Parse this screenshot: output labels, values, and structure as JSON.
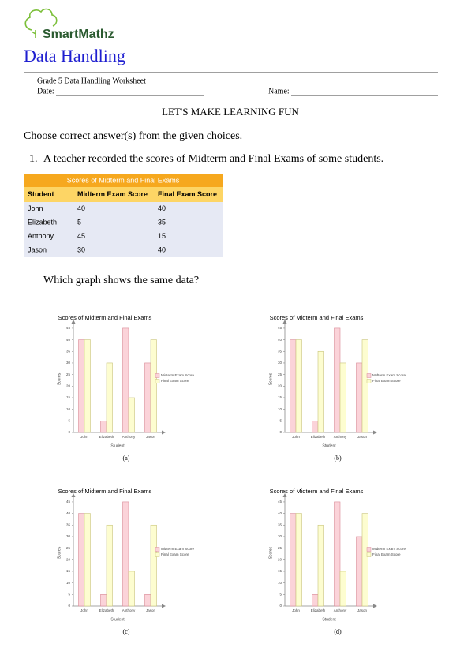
{
  "header": {
    "brand": "SmartMathz",
    "title": "Data Handling",
    "subtitle": "Grade 5 Data Handling Worksheet",
    "date_label": "Date:",
    "name_label": "Name:"
  },
  "tagline": "LET'S MAKE LEARNING FUN",
  "instruction": "Choose correct answer(s) from the given choices.",
  "question": {
    "number": "1.",
    "text": "A teacher recorded the scores of Midterm and Final Exams of some students.",
    "table": {
      "title": "Scores of Midterm and Final Exams",
      "columns": [
        "Student",
        "Midterm Exam Score",
        "Final Exam Score"
      ],
      "rows": [
        [
          "John",
          40,
          40
        ],
        [
          "Elizabeth",
          5,
          35
        ],
        [
          "Anthony",
          45,
          15
        ],
        [
          "Jason",
          30,
          40
        ]
      ]
    },
    "prompt": "Which graph shows the same data?",
    "options": [
      "(a)",
      "(b)",
      "(c)",
      "(d)"
    ]
  },
  "chart_data": [
    {
      "type": "bar",
      "title": "Scores of Midterm and Final Exams",
      "x_label": "Student",
      "y_label": "Scores",
      "categories": [
        "John",
        "Elizabeth",
        "Anthony",
        "Jason"
      ],
      "series": [
        {
          "name": "Midterm Exam Score",
          "color": "#fbd3d9",
          "values": [
            40,
            5,
            45,
            30
          ]
        },
        {
          "name": "Final Exam Score",
          "color": "#fdfdd0",
          "values": [
            40,
            30,
            15,
            40
          ]
        }
      ],
      "ylim": [
        0,
        46
      ],
      "yticks": [
        0,
        5,
        10,
        15,
        20,
        25,
        30,
        35,
        40,
        45
      ],
      "legend": "right"
    },
    {
      "type": "bar",
      "title": "Scores of Midterm and Final Exams",
      "x_label": "Student",
      "y_label": "Scores",
      "categories": [
        "John",
        "Elizabeth",
        "Anthony",
        "Jason"
      ],
      "series": [
        {
          "name": "Midterm Exam Score",
          "color": "#fbd3d9",
          "values": [
            40,
            5,
            45,
            30
          ]
        },
        {
          "name": "Final Exam Score",
          "color": "#fdfdd0",
          "values": [
            40,
            35,
            30,
            40
          ]
        }
      ],
      "ylim": [
        0,
        46
      ],
      "yticks": [
        0,
        5,
        10,
        15,
        20,
        25,
        30,
        35,
        40,
        45
      ],
      "legend": "right"
    },
    {
      "type": "bar",
      "title": "Scores of Midterm and Final Exams",
      "x_label": "Student",
      "y_label": "Scores",
      "categories": [
        "John",
        "Elizabeth",
        "Anthony",
        "Jason"
      ],
      "series": [
        {
          "name": "Midterm Exam Score",
          "color": "#fbd3d9",
          "values": [
            40,
            5,
            45,
            5
          ]
        },
        {
          "name": "Final Exam Score",
          "color": "#fdfdd0",
          "values": [
            40,
            35,
            15,
            35
          ]
        }
      ],
      "ylim": [
        0,
        46
      ],
      "yticks": [
        0,
        5,
        10,
        15,
        20,
        25,
        30,
        35,
        40,
        45
      ],
      "legend": "right"
    },
    {
      "type": "bar",
      "title": "Scores of Midterm and Final Exams",
      "x_label": "Student",
      "y_label": "Scores",
      "categories": [
        "John",
        "Elizabeth",
        "Anthony",
        "Jason"
      ],
      "series": [
        {
          "name": "Midterm Exam Score",
          "color": "#fbd3d9",
          "values": [
            40,
            5,
            45,
            30
          ]
        },
        {
          "name": "Final Exam Score",
          "color": "#fdfdd0",
          "values": [
            40,
            35,
            15,
            40
          ]
        }
      ],
      "ylim": [
        0,
        46
      ],
      "yticks": [
        0,
        5,
        10,
        15,
        20,
        25,
        30,
        35,
        40,
        45
      ],
      "legend": "right"
    }
  ]
}
